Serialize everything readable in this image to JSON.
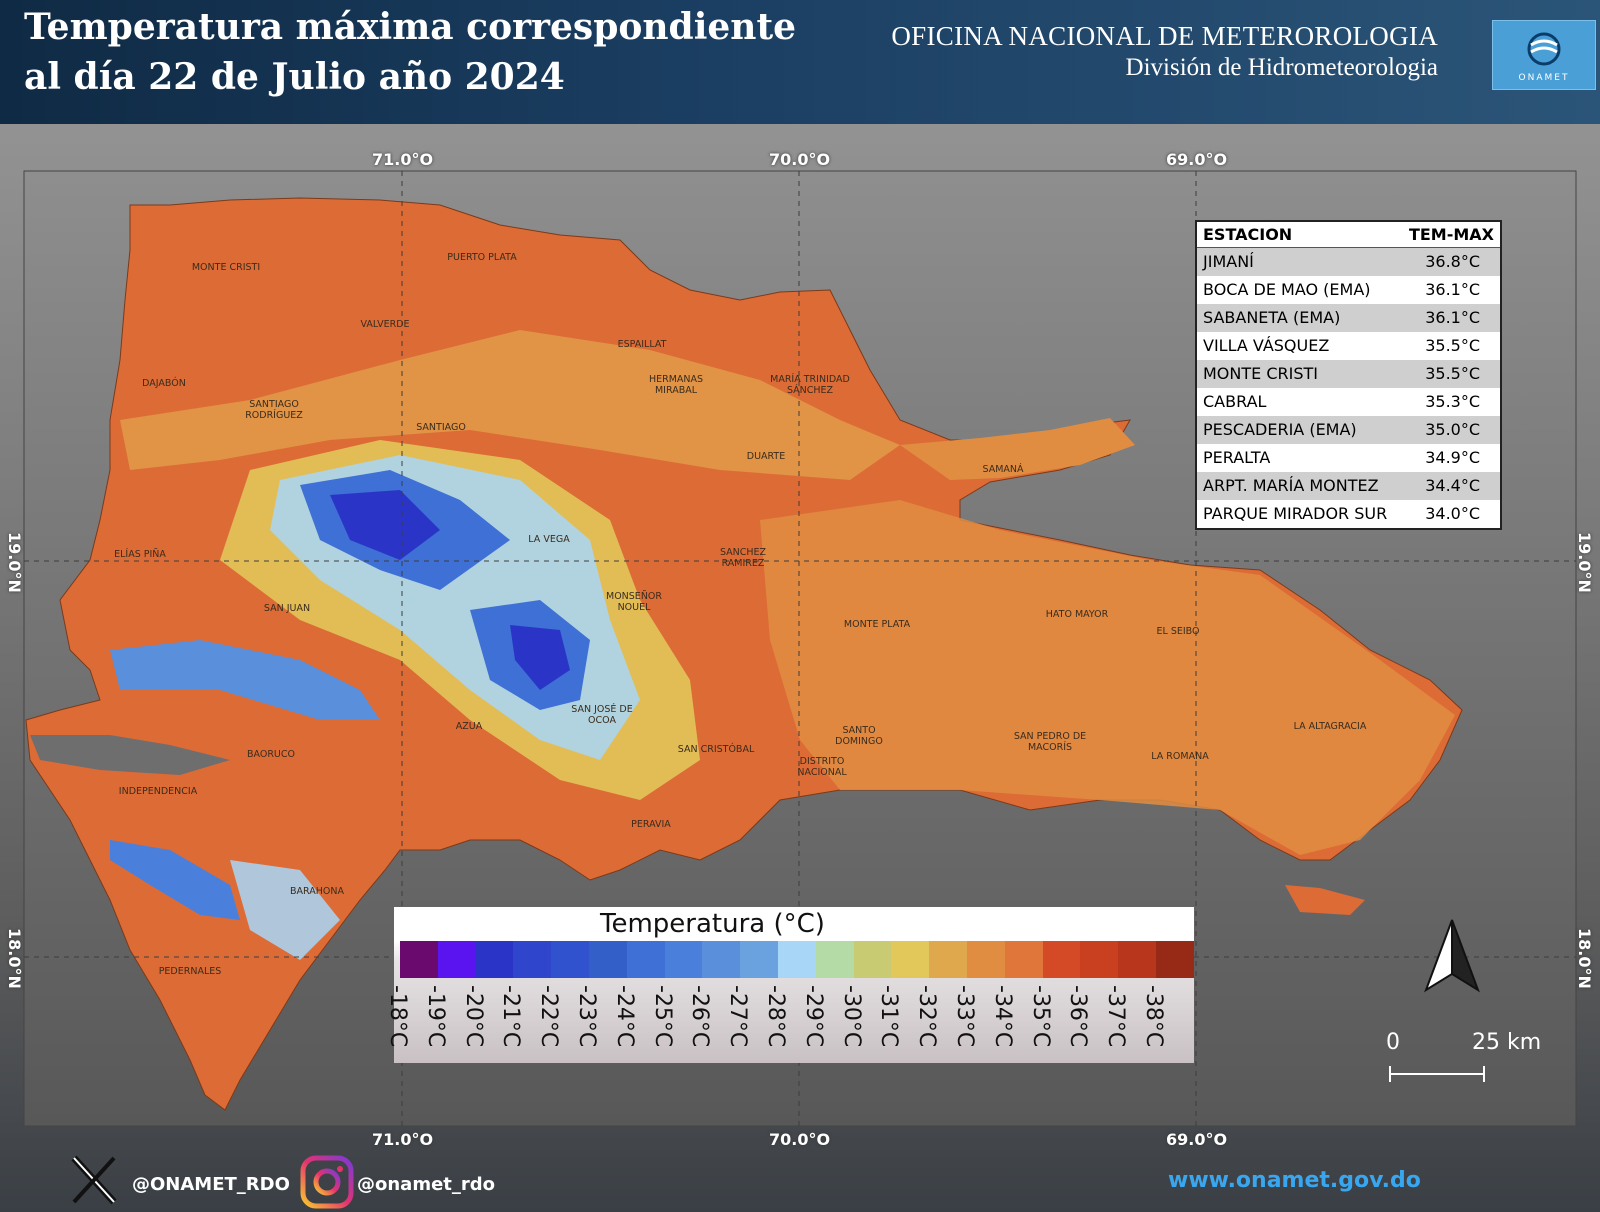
{
  "header": {
    "title_line1": "Temperatura máxima correspondiente",
    "title_line2": "al día 22 de Julio año 2024",
    "org_line1": "OFICINA NACIONAL DE METEROROLOGIA",
    "org_line2": "División de Hidrometeorologia",
    "logo_text": "ONAMET"
  },
  "coords": {
    "top": [
      "71.0°O",
      "70.0°O",
      "69.0°O"
    ],
    "bottom": [
      "71.0°O",
      "70.0°O",
      "69.0°O"
    ],
    "left": [
      "19.0°N",
      "18.0°N"
    ],
    "right": [
      "19.0°N",
      "18.0°N"
    ]
  },
  "stations": {
    "col1": "ESTACION",
    "col2": "TEM-MAX",
    "rows": [
      {
        "name": "JIMANÍ",
        "value": "36.8°C"
      },
      {
        "name": "BOCA DE MAO (EMA)",
        "value": "36.1°C"
      },
      {
        "name": "SABANETA (EMA)",
        "value": "36.1°C"
      },
      {
        "name": "VILLA VÁSQUEZ",
        "value": "35.5°C"
      },
      {
        "name": "MONTE CRISTI",
        "value": "35.5°C"
      },
      {
        "name": "CABRAL",
        "value": "35.3°C"
      },
      {
        "name": "PESCADERIA (EMA)",
        "value": "35.0°C"
      },
      {
        "name": "PERALTA",
        "value": "34.9°C"
      },
      {
        "name": "ARPT. MARÍA MONTEZ",
        "value": "34.4°C"
      },
      {
        "name": "PARQUE MIRADOR SUR",
        "value": "34.0°C"
      }
    ]
  },
  "legend": {
    "title": "Temperatura (°C)",
    "items": [
      {
        "label": "-18°C",
        "color": "#6a0a6e"
      },
      {
        "label": "-19°C",
        "color": "#5a14f0"
      },
      {
        "label": "-20°C",
        "color": "#2a35c8"
      },
      {
        "label": "-21°C",
        "color": "#2e45cc"
      },
      {
        "label": "-22°C",
        "color": "#3052cf"
      },
      {
        "label": "-23°C",
        "color": "#3360c8"
      },
      {
        "label": "-24°C",
        "color": "#3e70d6"
      },
      {
        "label": "-25°C",
        "color": "#4a80dc"
      },
      {
        "label": "-26°C",
        "color": "#5a8fdc"
      },
      {
        "label": "-27°C",
        "color": "#6aa2e0"
      },
      {
        "label": "-28°C",
        "color": "#a8d6f7"
      },
      {
        "label": "-29°C",
        "color": "#b4dba6"
      },
      {
        "label": "-30°C",
        "color": "#c9cb72"
      },
      {
        "label": "-31°C",
        "color": "#e2c75a"
      },
      {
        "label": "-32°C",
        "color": "#e0a84c"
      },
      {
        "label": "-33°C",
        "color": "#e08d42"
      },
      {
        "label": "-34°C",
        "color": "#e0763a"
      },
      {
        "label": "-35°C",
        "color": "#d44a26"
      },
      {
        "label": "-36°C",
        "color": "#c8401f"
      },
      {
        "label": "-37°C",
        "color": "#b8361c"
      },
      {
        "label": "-38°C",
        "color": "#962a16"
      }
    ]
  },
  "map_labels": [
    "MONTE CRISTI",
    "PUERTO PLATA",
    "VALVERDE",
    "ESPAILLAT",
    "HERMANAS MIRABAL",
    "MARÍA TRINIDAD SÁNCHEZ",
    "DAJABÓN",
    "SANTIAGO RODRÍGUEZ",
    "SANTIAGO",
    "DUARTE",
    "SAMANÁ",
    "ELÍAS PIÑA",
    "LA VEGA",
    "SANCHEZ RAMIREZ",
    "MONSEÑOR NOUEL",
    "SAN JUAN",
    "MONTE PLATA",
    "HATO MAYOR",
    "EL SEIBO",
    "SAN JOSÉ DE OCOA",
    "AZUA",
    "SAN CRISTÓBAL",
    "SANTO DOMINGO",
    "DISTRITO NACIONAL",
    "SAN PEDRO DE MACORÍS",
    "LA ROMANA",
    "LA ALTAGRACIA",
    "BAORUCO",
    "INDEPENDENCIA",
    "PERAVIA",
    "BARAHONA",
    "PEDERNALES"
  ],
  "scale": {
    "zero": "0",
    "distance": "25 km"
  },
  "footer": {
    "twitter": "@ONAMET_RDO",
    "instagram": "@onamet_rdo",
    "url": "www.onamet.gov.do"
  }
}
